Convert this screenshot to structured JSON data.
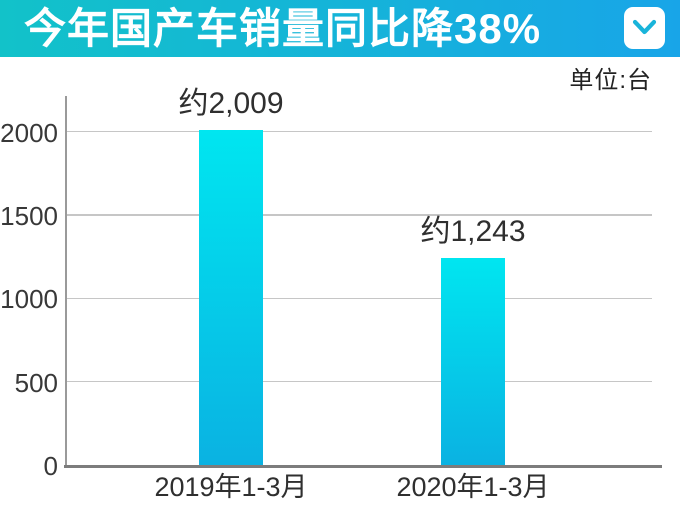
{
  "header": {
    "title": "今年国产车销量同比降38%",
    "bg_gradient_left": "#12c2c9",
    "bg_gradient_right": "#18a5e8",
    "collapse_icon_color": "#19b4da"
  },
  "unit_label": "单位:台",
  "chart_data": {
    "type": "bar",
    "title": "今年国产车销量同比降38%",
    "unit": "台",
    "categories": [
      "2019年1-3月",
      "2020年1-3月"
    ],
    "values": [
      2009,
      1243
    ],
    "value_labels": [
      "约2,009",
      "约1,243"
    ],
    "yticks": [
      0,
      500,
      1000,
      1500,
      2000
    ],
    "ylim": [
      0,
      2100
    ],
    "grid": true,
    "legend_position": "none",
    "bar_gradient_top": "#00e6f0",
    "bar_gradient_bottom": "#0ab2e2"
  }
}
